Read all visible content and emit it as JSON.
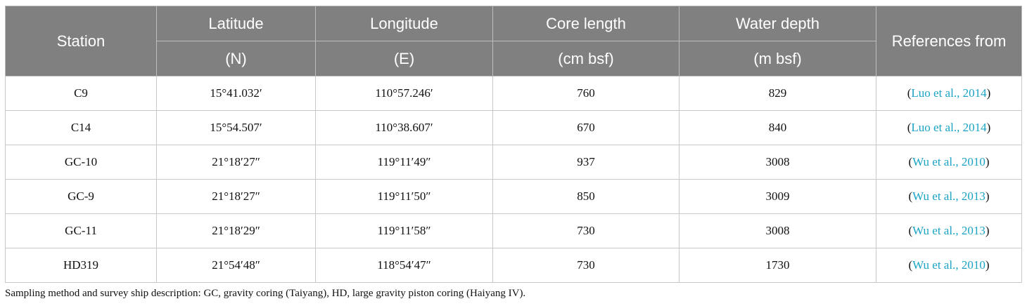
{
  "table": {
    "header": {
      "row1": [
        "Station",
        "Latitude",
        "Longitude",
        "Core length",
        "Water depth",
        "References from"
      ],
      "row2": [
        "(N)",
        "(E)",
        "(cm bsf)",
        "(m bsf)"
      ]
    },
    "rows": [
      {
        "cells": [
          "C9",
          "15°41.032′",
          "110°57.246′",
          "760",
          "829"
        ],
        "ref": {
          "open": "(",
          "cite": "Luo et al., 2014",
          "close": ")"
        }
      },
      {
        "cells": [
          "C14",
          "15°54.507′",
          "110°38.607′",
          "670",
          "840"
        ],
        "ref": {
          "open": "(",
          "cite": "Luo et al., 2014",
          "close": ")"
        }
      },
      {
        "cells": [
          "GC-10",
          "21°18′27″",
          "119°11′49″",
          "937",
          "3008"
        ],
        "ref": {
          "open": "(",
          "cite": "Wu et al., 2010",
          "close": ")"
        }
      },
      {
        "cells": [
          "GC-9",
          "21°18′27″",
          "119°11′50″",
          "850",
          "3009"
        ],
        "ref": {
          "open": "(",
          "cite": "Wu et al., 2013",
          "close": ")"
        }
      },
      {
        "cells": [
          "GC-11",
          "21°18′29″",
          "119°11′58″",
          "730",
          "3008"
        ],
        "ref": {
          "open": "(",
          "cite": "Wu et al., 2013",
          "close": ")"
        }
      },
      {
        "cells": [
          "HD319",
          "21°54′48″",
          "118°54′47″",
          "730",
          "1730"
        ],
        "ref": {
          "open": "(",
          "cite": "Wu et al., 2010",
          "close": ")"
        }
      }
    ]
  },
  "footnote": "Sampling method and survey ship description: GC, gravity coring (Taiyang), HD, large gravity piston coring (Haiyang IV)."
}
